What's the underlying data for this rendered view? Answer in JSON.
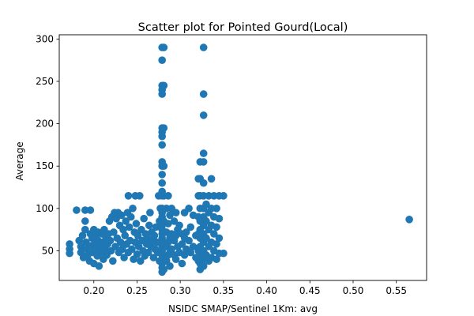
{
  "chart_data": {
    "type": "scatter",
    "title": "Scatter plot for Pointed Gourd(Local)",
    "xlabel": "NSIDC SMAP/Sentinel 1Km: avg",
    "ylabel": "Average",
    "xlim": [
      0.16,
      0.585
    ],
    "ylim": [
      15,
      305
    ],
    "xticks": [
      0.2,
      0.25,
      0.3,
      0.35,
      0.4,
      0.45,
      0.5,
      0.55
    ],
    "xtick_labels": [
      "0.20",
      "0.25",
      "0.30",
      "0.35",
      "0.40",
      "0.45",
      "0.50",
      "0.55"
    ],
    "yticks": [
      50,
      100,
      150,
      200,
      250,
      300
    ],
    "ytick_labels": [
      "50",
      "100",
      "150",
      "200",
      "250",
      "300"
    ],
    "grid": false,
    "marker_color": "#1f77b4",
    "series": [
      {
        "points": [
          [
            0.172,
            58
          ],
          [
            0.172,
            52
          ],
          [
            0.172,
            47
          ],
          [
            0.18,
            98
          ],
          [
            0.183,
            62
          ],
          [
            0.185,
            55
          ],
          [
            0.185,
            48
          ],
          [
            0.187,
            68
          ],
          [
            0.188,
            42
          ],
          [
            0.19,
            98
          ],
          [
            0.19,
            85
          ],
          [
            0.19,
            75
          ],
          [
            0.191,
            60
          ],
          [
            0.192,
            52
          ],
          [
            0.193,
            45
          ],
          [
            0.195,
            38
          ],
          [
            0.196,
            98
          ],
          [
            0.196,
            70
          ],
          [
            0.197,
            56
          ],
          [
            0.198,
            65
          ],
          [
            0.199,
            48
          ],
          [
            0.2,
            75
          ],
          [
            0.2,
            35
          ],
          [
            0.201,
            58
          ],
          [
            0.202,
            68
          ],
          [
            0.203,
            52
          ],
          [
            0.204,
            44
          ],
          [
            0.205,
            72
          ],
          [
            0.205,
            62
          ],
          [
            0.206,
            32
          ],
          [
            0.207,
            55
          ],
          [
            0.208,
            48
          ],
          [
            0.209,
            70
          ],
          [
            0.21,
            60
          ],
          [
            0.211,
            40
          ],
          [
            0.212,
            75
          ],
          [
            0.213,
            52
          ],
          [
            0.214,
            66
          ],
          [
            0.215,
            45
          ],
          [
            0.216,
            58
          ],
          [
            0.217,
            70
          ],
          [
            0.218,
            85
          ],
          [
            0.219,
            62
          ],
          [
            0.22,
            50
          ],
          [
            0.221,
            90
          ],
          [
            0.222,
            38
          ],
          [
            0.223,
            72
          ],
          [
            0.224,
            95
          ],
          [
            0.225,
            55
          ],
          [
            0.226,
            88
          ],
          [
            0.227,
            65
          ],
          [
            0.228,
            95
          ],
          [
            0.229,
            48
          ],
          [
            0.23,
            80
          ],
          [
            0.231,
            60
          ],
          [
            0.232,
            92
          ],
          [
            0.233,
            52
          ],
          [
            0.234,
            75
          ],
          [
            0.235,
            42
          ],
          [
            0.236,
            68
          ],
          [
            0.237,
            85
          ],
          [
            0.238,
            58
          ],
          [
            0.239,
            95
          ],
          [
            0.24,
            115
          ],
          [
            0.24,
            48
          ],
          [
            0.241,
            78
          ],
          [
            0.242,
            62
          ],
          [
            0.243,
            90
          ],
          [
            0.244,
            52
          ],
          [
            0.245,
            100
          ],
          [
            0.246,
            40
          ],
          [
            0.247,
            72
          ],
          [
            0.248,
            115
          ],
          [
            0.248,
            60
          ],
          [
            0.249,
            82
          ],
          [
            0.25,
            46
          ],
          [
            0.251,
            68
          ],
          [
            0.252,
            55
          ],
          [
            0.253,
            115
          ],
          [
            0.254,
            38
          ],
          [
            0.255,
            75
          ],
          [
            0.256,
            62
          ],
          [
            0.257,
            50
          ],
          [
            0.258,
            88
          ],
          [
            0.259,
            44
          ],
          [
            0.26,
            70
          ],
          [
            0.261,
            58
          ],
          [
            0.262,
            65
          ],
          [
            0.263,
            48
          ],
          [
            0.264,
            80
          ],
          [
            0.265,
            95
          ],
          [
            0.266,
            55
          ],
          [
            0.267,
            72
          ],
          [
            0.268,
            62
          ],
          [
            0.269,
            42
          ],
          [
            0.27,
            68
          ],
          [
            0.271,
            52
          ],
          [
            0.272,
            78
          ],
          [
            0.273,
            60
          ],
          [
            0.274,
            48
          ],
          [
            0.275,
            115
          ],
          [
            0.276,
            85
          ],
          [
            0.276,
            38
          ],
          [
            0.277,
            100
          ],
          [
            0.279,
            290
          ],
          [
            0.279,
            275
          ],
          [
            0.279,
            245
          ],
          [
            0.279,
            240
          ],
          [
            0.279,
            235
          ],
          [
            0.279,
            195
          ],
          [
            0.279,
            190
          ],
          [
            0.279,
            185
          ],
          [
            0.279,
            175
          ],
          [
            0.279,
            155
          ],
          [
            0.279,
            150
          ],
          [
            0.279,
            140
          ],
          [
            0.279,
            130
          ],
          [
            0.279,
            120
          ],
          [
            0.279,
            115
          ],
          [
            0.279,
            100
          ],
          [
            0.279,
            95
          ],
          [
            0.279,
            90
          ],
          [
            0.279,
            85
          ],
          [
            0.279,
            80
          ],
          [
            0.279,
            75
          ],
          [
            0.279,
            70
          ],
          [
            0.279,
            65
          ],
          [
            0.279,
            60
          ],
          [
            0.279,
            55
          ],
          [
            0.279,
            50
          ],
          [
            0.279,
            45
          ],
          [
            0.279,
            40
          ],
          [
            0.279,
            35
          ],
          [
            0.279,
            30
          ],
          [
            0.279,
            25
          ],
          [
            0.281,
            290
          ],
          [
            0.281,
            245
          ],
          [
            0.281,
            195
          ],
          [
            0.281,
            150
          ],
          [
            0.281,
            115
          ],
          [
            0.281,
            85
          ],
          [
            0.281,
            60
          ],
          [
            0.281,
            40
          ],
          [
            0.281,
            28
          ],
          [
            0.284,
            100
          ],
          [
            0.284,
            72
          ],
          [
            0.284,
            55
          ],
          [
            0.284,
            38
          ],
          [
            0.286,
            115
          ],
          [
            0.286,
            82
          ],
          [
            0.286,
            60
          ],
          [
            0.286,
            45
          ],
          [
            0.288,
            92
          ],
          [
            0.288,
            65
          ],
          [
            0.288,
            48
          ],
          [
            0.288,
            32
          ],
          [
            0.29,
            100
          ],
          [
            0.29,
            70
          ],
          [
            0.29,
            52
          ],
          [
            0.293,
            85
          ],
          [
            0.293,
            62
          ],
          [
            0.293,
            45
          ],
          [
            0.295,
            95
          ],
          [
            0.295,
            68
          ],
          [
            0.295,
            40
          ],
          [
            0.297,
            75
          ],
          [
            0.297,
            55
          ],
          [
            0.299,
            80
          ],
          [
            0.299,
            48
          ],
          [
            0.302,
            70
          ],
          [
            0.302,
            58
          ],
          [
            0.302,
            35
          ],
          [
            0.305,
            95
          ],
          [
            0.305,
            65
          ],
          [
            0.305,
            45
          ],
          [
            0.307,
            72
          ],
          [
            0.307,
            52
          ],
          [
            0.31,
            100
          ],
          [
            0.31,
            62
          ],
          [
            0.312,
            78
          ],
          [
            0.312,
            48
          ],
          [
            0.315,
            92
          ],
          [
            0.315,
            55
          ],
          [
            0.318,
            68
          ],
          [
            0.318,
            42
          ],
          [
            0.321,
            135
          ],
          [
            0.321,
            115
          ],
          [
            0.321,
            90
          ],
          [
            0.321,
            70
          ],
          [
            0.321,
            50
          ],
          [
            0.321,
            38
          ],
          [
            0.323,
            155
          ],
          [
            0.323,
            135
          ],
          [
            0.323,
            115
          ],
          [
            0.323,
            100
          ],
          [
            0.323,
            85
          ],
          [
            0.323,
            75
          ],
          [
            0.323,
            65
          ],
          [
            0.323,
            55
          ],
          [
            0.323,
            45
          ],
          [
            0.323,
            35
          ],
          [
            0.323,
            28
          ],
          [
            0.327,
            290
          ],
          [
            0.327,
            235
          ],
          [
            0.327,
            210
          ],
          [
            0.327,
            165
          ],
          [
            0.327,
            155
          ],
          [
            0.327,
            130
          ],
          [
            0.327,
            115
          ],
          [
            0.327,
            100
          ],
          [
            0.327,
            90
          ],
          [
            0.327,
            80
          ],
          [
            0.327,
            70
          ],
          [
            0.327,
            60
          ],
          [
            0.327,
            50
          ],
          [
            0.327,
            40
          ],
          [
            0.327,
            32
          ],
          [
            0.33,
            105
          ],
          [
            0.33,
            85
          ],
          [
            0.33,
            65
          ],
          [
            0.33,
            45
          ],
          [
            0.333,
            115
          ],
          [
            0.333,
            95
          ],
          [
            0.333,
            75
          ],
          [
            0.333,
            55
          ],
          [
            0.333,
            38
          ],
          [
            0.336,
            135
          ],
          [
            0.336,
            100
          ],
          [
            0.336,
            80
          ],
          [
            0.336,
            60
          ],
          [
            0.336,
            42
          ],
          [
            0.339,
            115
          ],
          [
            0.339,
            90
          ],
          [
            0.339,
            70
          ],
          [
            0.339,
            50
          ],
          [
            0.342,
            100
          ],
          [
            0.342,
            78
          ],
          [
            0.342,
            58
          ],
          [
            0.342,
            40
          ],
          [
            0.345,
            115
          ],
          [
            0.345,
            88
          ],
          [
            0.345,
            65
          ],
          [
            0.345,
            47
          ],
          [
            0.35,
            115
          ],
          [
            0.35,
            47
          ],
          [
            0.565,
            87
          ]
        ]
      }
    ]
  }
}
